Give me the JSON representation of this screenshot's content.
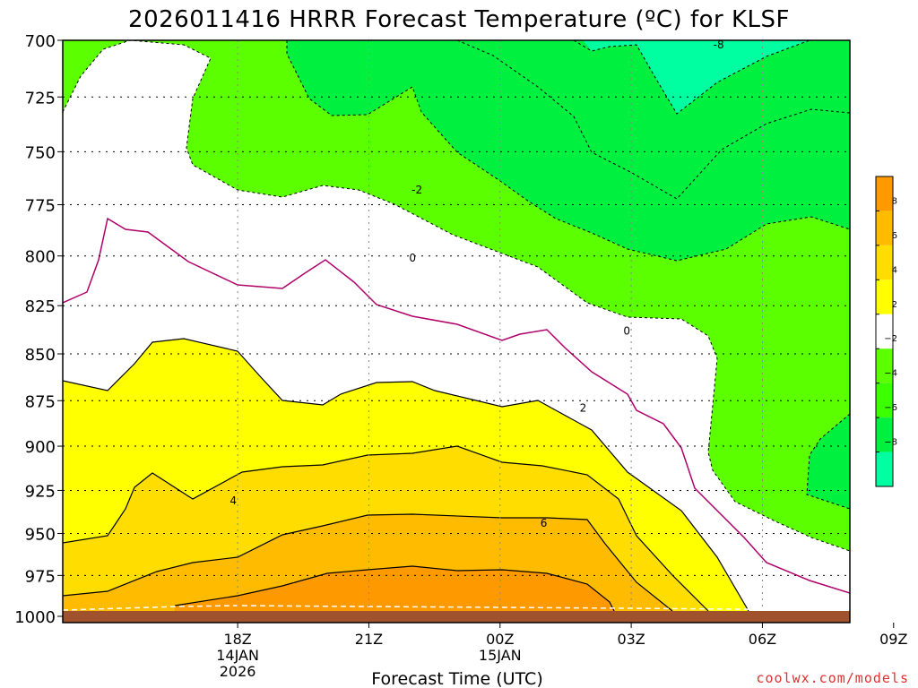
{
  "chart_data": {
    "type": "heatmap",
    "title": "2026011416 HRRR Forecast Temperature (ºC) for KLSF",
    "xlabel": "Forecast Time (UTC)",
    "ylabel": "",
    "credit": "coolwx.com/models",
    "x_range_hours": [
      14,
      32
    ],
    "y_range_hpa": [
      700,
      1000
    ],
    "y_scale": "log-pressure",
    "grid": true,
    "y_ticks": [
      700,
      725,
      750,
      775,
      800,
      825,
      850,
      875,
      900,
      925,
      950,
      975,
      1000
    ],
    "x_ticks": [
      {
        "hour": 18,
        "lines": [
          "18Z",
          "14JAN",
          "2026"
        ]
      },
      {
        "hour": 21,
        "lines": [
          "21Z"
        ]
      },
      {
        "hour": 24,
        "lines": [
          "00Z",
          "15JAN"
        ]
      },
      {
        "hour": 27,
        "lines": [
          "03Z"
        ]
      },
      {
        "hour": 30,
        "lines": [
          "06Z"
        ]
      },
      {
        "hour": 33,
        "lines": [
          "09Z"
        ]
      }
    ],
    "colorbar": {
      "bands": [
        {
          "range": [
            -10,
            -8
          ],
          "color": "#00ffa0"
        },
        {
          "range": [
            -8,
            -6
          ],
          "color": "#00f040"
        },
        {
          "range": [
            -6,
            -4
          ],
          "color": "#3cff00"
        },
        {
          "range": [
            -4,
            -2
          ],
          "color": "#5cff00"
        },
        {
          "range": [
            -2,
            2
          ],
          "color": "#ffffff"
        },
        {
          "range": [
            2,
            4
          ],
          "color": "#ffff00"
        },
        {
          "range": [
            4,
            6
          ],
          "color": "#ffdd00"
        },
        {
          "range": [
            6,
            8
          ],
          "color": "#ffbb00"
        },
        {
          "range": [
            8,
            10
          ],
          "color": "#ff9900"
        }
      ],
      "labels": [
        "8",
        "6",
        "4",
        "2",
        "−2",
        "−4",
        "−6",
        "−8"
      ]
    },
    "contour_labels": [
      {
        "text": "-8",
        "hour": 29.0,
        "p": 702
      },
      {
        "text": "-2",
        "hour": 22.1,
        "p": 768
      },
      {
        "text": "0",
        "hour": 22.0,
        "p": 801
      },
      {
        "text": "0",
        "hour": 26.9,
        "p": 838
      },
      {
        "text": "2",
        "hour": 25.9,
        "p": 879
      },
      {
        "text": "4",
        "hour": 17.9,
        "p": 931
      },
      {
        "text": "6",
        "hour": 25.0,
        "p": 944
      }
    ]
  }
}
